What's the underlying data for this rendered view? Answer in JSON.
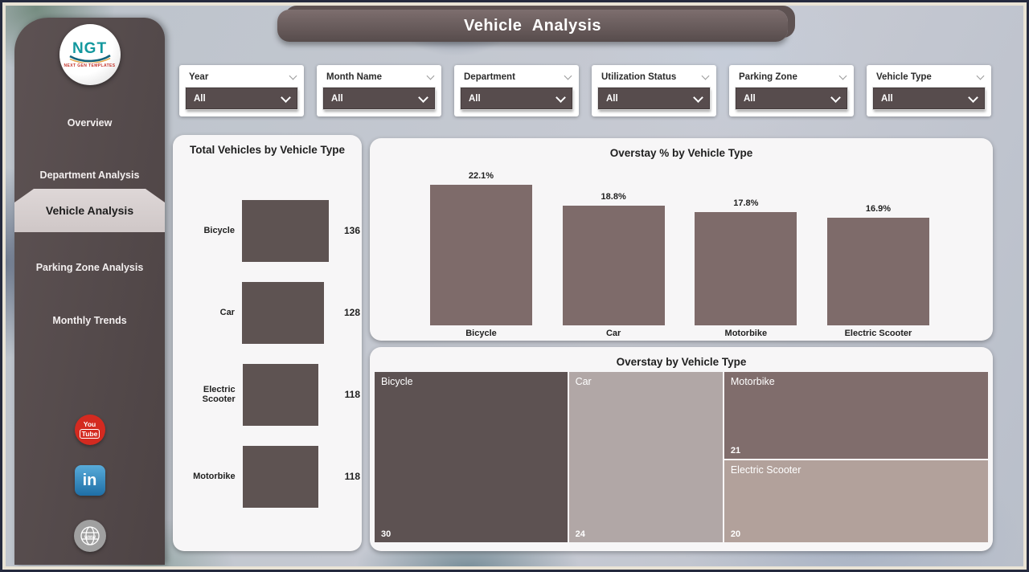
{
  "page_title": "Vehicle Analysis",
  "sidebar": {
    "logo": {
      "text": "NGT",
      "subtext": "NEXT GEN TEMPLATES"
    },
    "items": [
      {
        "label": "Overview",
        "active": false
      },
      {
        "label": "Department Analysis",
        "active": false
      },
      {
        "label": "Vehicle Analysis",
        "active": true
      },
      {
        "label": "Parking Zone Analysis",
        "active": false
      },
      {
        "label": "Monthly Trends",
        "active": false
      }
    ],
    "social": {
      "youtube": {
        "line1": "You",
        "line2": "Tube"
      },
      "linkedin": "in",
      "website": "www"
    }
  },
  "filters": [
    {
      "label": "Year",
      "value": "All"
    },
    {
      "label": "Month Name",
      "value": "All"
    },
    {
      "label": "Department",
      "value": "All"
    },
    {
      "label": "Utilization Status",
      "value": "All"
    },
    {
      "label": "Parking Zone",
      "value": "All"
    },
    {
      "label": "Vehicle Type",
      "value": "All"
    }
  ],
  "chart_data": [
    {
      "type": "bar",
      "orientation": "horizontal",
      "title": "Total Vehicles by Vehicle Type",
      "categories": [
        "Bicycle",
        "Car",
        "Electric Scooter",
        "Motorbike"
      ],
      "values": [
        136,
        128,
        118,
        118
      ],
      "bar_color": "#5e5352",
      "xlim": [
        0,
        136
      ],
      "grid": false,
      "legend": "none"
    },
    {
      "type": "bar",
      "orientation": "vertical",
      "title": "Overstay % by Vehicle Type",
      "categories": [
        "Bicycle",
        "Car",
        "Motorbike",
        "Electric Scooter"
      ],
      "values": [
        22.1,
        18.8,
        17.8,
        16.9
      ],
      "labels": [
        "22.1%",
        "18.8%",
        "17.8%",
        "16.9%"
      ],
      "bar_color": "#7e6b6a",
      "ylim": [
        0,
        22.1
      ],
      "grid": false,
      "legend": "none"
    },
    {
      "type": "heatmap",
      "subtype": "treemap",
      "title": "Overstay by Vehicle Type",
      "items": [
        {
          "label": "Bicycle",
          "value": 30,
          "color": "#5d5252"
        },
        {
          "label": "Car",
          "value": 24,
          "color": "#b1a7a6"
        },
        {
          "label": "Motorbike",
          "value": 21,
          "color": "#806d6c"
        },
        {
          "label": "Electric Scooter",
          "value": 20,
          "color": "#b2a19b"
        }
      ],
      "legend": "none"
    }
  ],
  "colors": {
    "sidebar_bg": "#544a4b",
    "header_bg": "#6b5d5d",
    "active_nav_bg": "#d6cfcf",
    "slicer_bg": "#574c4d",
    "card_bg": "#f7f6f7",
    "hbar_color": "#5e5352",
    "vbar_color": "#7e6b6a",
    "youtube_red": "#d42a20",
    "linkedin_blue": "#1f6fa6"
  }
}
